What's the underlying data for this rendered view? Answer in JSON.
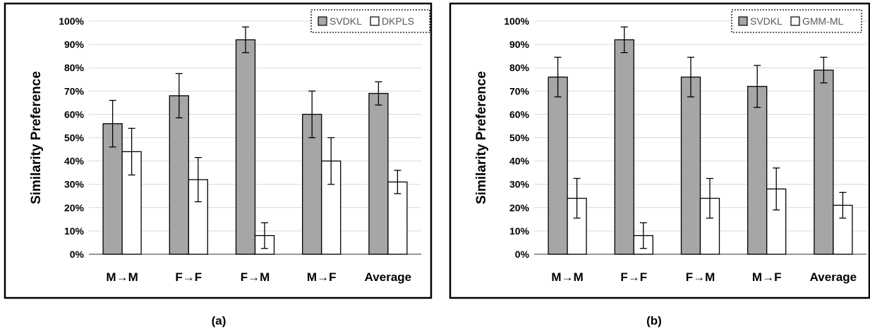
{
  "charts": [
    {
      "type": "bar",
      "ylabel": "Similarity Preference",
      "ylim": [
        0,
        100
      ],
      "yticks": [
        "0%",
        "10%",
        "20%",
        "30%",
        "40%",
        "50%",
        "60%",
        "70%",
        "80%",
        "90%",
        "100%"
      ],
      "categories": [
        "M→M",
        "F→F",
        "F→M",
        "M→F",
        "Average"
      ],
      "series": [
        {
          "name": "SVDKL",
          "color": "#a6a6a6",
          "values": [
            56,
            68,
            92,
            60,
            69
          ],
          "errors": [
            10,
            9.5,
            5.5,
            10,
            5
          ]
        },
        {
          "name": "DKPLS",
          "color": "#ffffff",
          "values": [
            44,
            32,
            8,
            40,
            31
          ],
          "errors": [
            10,
            9.5,
            5.5,
            10,
            5
          ]
        }
      ],
      "legend_position": "top-right",
      "grid": true,
      "caption": "(a)"
    },
    {
      "type": "bar",
      "ylabel": "Similarity Preference",
      "ylim": [
        0,
        100
      ],
      "yticks": [
        "0%",
        "10%",
        "20%",
        "30%",
        "40%",
        "50%",
        "60%",
        "70%",
        "80%",
        "90%",
        "100%"
      ],
      "categories": [
        "M→M",
        "F→F",
        "F→M",
        "M→F",
        "Average"
      ],
      "series": [
        {
          "name": "SVDKL",
          "color": "#a6a6a6",
          "values": [
            76,
            92,
            76,
            72,
            79
          ],
          "errors": [
            8.5,
            5.5,
            8.5,
            9,
            5.5
          ]
        },
        {
          "name": "GMM-ML",
          "color": "#ffffff",
          "values": [
            24,
            8,
            24,
            28,
            21
          ],
          "errors": [
            8.5,
            5.5,
            8.5,
            9,
            5.5
          ]
        }
      ],
      "legend_position": "top-right",
      "grid": true,
      "caption": "(b)"
    }
  ]
}
